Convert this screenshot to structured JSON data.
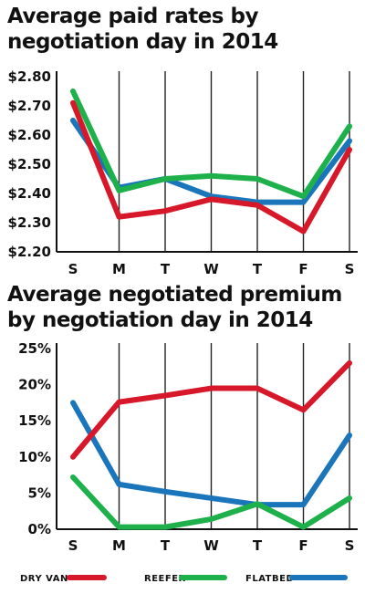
{
  "chart_data": [
    {
      "type": "line",
      "title": "Average paid rates by negotiation day in 2014",
      "categories": [
        "S",
        "M",
        "T",
        "W",
        "T",
        "F",
        "S"
      ],
      "y_ticks": [
        "$2.80",
        "$2.70",
        "$2.60",
        "$2.50",
        "$2.40",
        "$2.30",
        "$2.20"
      ],
      "ylim": [
        2.2,
        2.8
      ],
      "grid": "vertical",
      "series": [
        {
          "name": "FLATBED",
          "color": "#1a75bb",
          "values": [
            2.65,
            2.42,
            2.45,
            2.39,
            2.37,
            2.37,
            2.58
          ]
        },
        {
          "name": "REEFER",
          "color": "#1eb14b",
          "values": [
            2.75,
            2.41,
            2.45,
            2.46,
            2.45,
            2.39,
            2.63
          ]
        },
        {
          "name": "DRY VAN",
          "color": "#d7182a",
          "values": [
            2.71,
            2.32,
            2.34,
            2.38,
            2.36,
            2.27,
            2.55
          ]
        }
      ]
    },
    {
      "type": "line",
      "title": "Average negotiated premium by negotiation day in 2014",
      "categories": [
        "S",
        "M",
        "T",
        "W",
        "T",
        "F",
        "S"
      ],
      "y_ticks": [
        "25%",
        "20%",
        "15%",
        "10%",
        "5%",
        "0%"
      ],
      "ylim": [
        0,
        25
      ],
      "grid": "vertical",
      "series": [
        {
          "name": "FLATBED",
          "color": "#1a75bb",
          "values": [
            17.5,
            6.2,
            5.2,
            4.3,
            3.4,
            3.4,
            13.0
          ]
        },
        {
          "name": "REEFER",
          "color": "#1eb14b",
          "values": [
            7.2,
            0.3,
            0.3,
            1.4,
            3.5,
            0.3,
            4.3
          ]
        },
        {
          "name": "DRY VAN",
          "color": "#d7182a",
          "values": [
            10.0,
            17.6,
            18.5,
            19.5,
            19.5,
            16.5,
            23.0
          ]
        }
      ]
    }
  ],
  "legend": [
    {
      "label": "DRY VAN",
      "color": "#d7182a"
    },
    {
      "label": "REEFER",
      "color": "#1eb14b"
    },
    {
      "label": "FLATBED",
      "color": "#1a75bb"
    }
  ]
}
